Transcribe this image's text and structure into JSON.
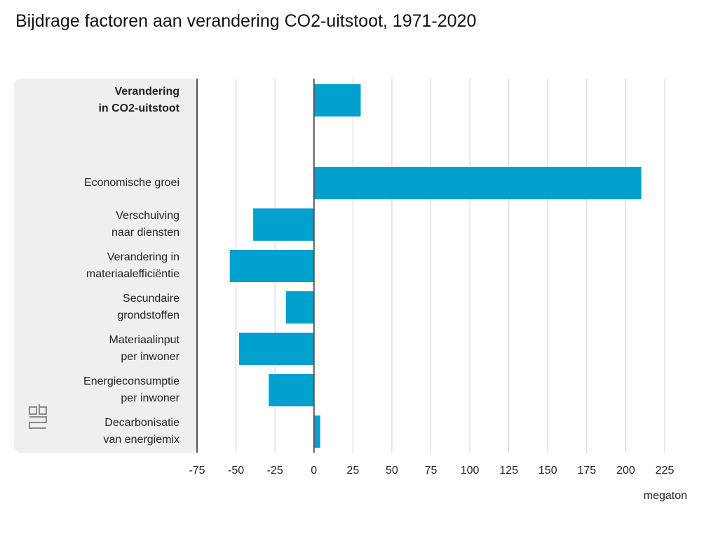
{
  "chart_data": {
    "type": "barh",
    "title": "Bijdrage factoren aan verandering CO2-uitstoot, 1971-2020",
    "categories": [
      "Verandering\nin CO2-uitstoot",
      "Economische groei",
      "Verschuiving\nnaar diensten",
      "Verandering in\nmateriaalefficiëntie",
      "Secundaire\ngrondstoffen",
      "Materiaalinput\nper inwoner",
      "Energieconsumptie\nper inwoner",
      "Decarbonisatie\nvan energiemix"
    ],
    "values": [
      30,
      210,
      -39,
      -54,
      -18,
      -48,
      -29,
      4
    ],
    "color": "#00a1cd",
    "xlabel": "megaton",
    "xlim": [
      -75,
      225
    ],
    "xticks": [
      -75,
      -50,
      -25,
      0,
      25,
      50,
      75,
      100,
      125,
      150,
      175,
      200,
      225
    ],
    "grid": true
  }
}
